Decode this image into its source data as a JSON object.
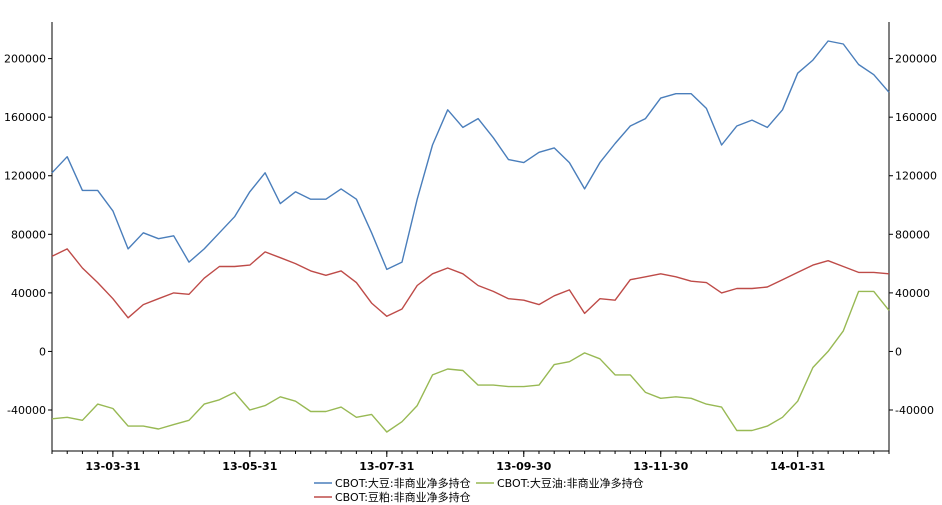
{
  "chart_data": {
    "type": "line",
    "title": "",
    "xlabel": "",
    "ylabel": "",
    "ylim": [
      -68000,
      225000
    ],
    "yticks": [
      200000,
      160000,
      120000,
      80000,
      40000,
      0,
      -40000
    ],
    "ytick_labels": [
      "200000",
      "160000",
      "120000",
      "80000",
      "40000",
      "0",
      "-40000"
    ],
    "xtick_labels": [
      "13-03-31",
      "13-05-31",
      "13-07-31",
      "13-09-30",
      "13-11-30",
      "14-01-31"
    ],
    "xtick_positions": [
      4,
      13,
      22,
      31,
      40,
      49
    ],
    "legend": "bottom-center",
    "grid": false,
    "series": [
      {
        "name": "CBOT:大豆:非商业净多持仓",
        "color": "#4a7ebb",
        "values": [
          122000,
          133000,
          110000,
          110000,
          96000,
          70000,
          81000,
          77000,
          79000,
          61000,
          70000,
          81000,
          92000,
          109000,
          122000,
          101000,
          109000,
          104000,
          104000,
          111000,
          104000,
          81000,
          56000,
          61000,
          104000,
          141000,
          165000,
          153000,
          159000,
          146000,
          131000,
          129000,
          136000,
          139000,
          129000,
          111000,
          129000,
          142000,
          154000,
          159000,
          173000,
          176000,
          176000,
          166000,
          141000,
          154000,
          158000,
          153000,
          165000,
          190000,
          199000,
          212000,
          210000,
          196000,
          189000,
          177000
        ]
      },
      {
        "name": "CBOT:大豆油:非商业净多持仓",
        "color": "#98b954",
        "values": [
          -46000,
          -45000,
          -47000,
          -36000,
          -39000,
          -51000,
          -51000,
          -53000,
          -50000,
          -47000,
          -36000,
          -33000,
          -28000,
          -40000,
          -37000,
          -31000,
          -34000,
          -41000,
          -41000,
          -38000,
          -45000,
          -43000,
          -55000,
          -48000,
          -37000,
          -16000,
          -12000,
          -13000,
          -23000,
          -23000,
          -24000,
          -24000,
          -23000,
          -9000,
          -7000,
          -1000,
          -5000,
          -16000,
          -16000,
          -28000,
          -32000,
          -31000,
          -32000,
          -36000,
          -38000,
          -54000,
          -54000,
          -51000,
          -45000,
          -34000,
          -11000,
          0,
          14000,
          41000,
          41000,
          28000
        ]
      },
      {
        "name": "CBOT:豆粕:非商业净多持仓",
        "color": "#be4b48",
        "values": [
          65000,
          70000,
          57000,
          47000,
          36000,
          23000,
          32000,
          36000,
          40000,
          39000,
          50000,
          58000,
          58000,
          59000,
          68000,
          64000,
          60000,
          55000,
          52000,
          55000,
          47000,
          33000,
          24000,
          29000,
          45000,
          53000,
          57000,
          53000,
          45000,
          41000,
          36000,
          35000,
          32000,
          38000,
          42000,
          26000,
          36000,
          35000,
          49000,
          51000,
          53000,
          51000,
          48000,
          47000,
          40000,
          43000,
          43000,
          44000,
          49000,
          54000,
          59000,
          62000,
          58000,
          54000,
          54000,
          53000
        ]
      }
    ]
  }
}
